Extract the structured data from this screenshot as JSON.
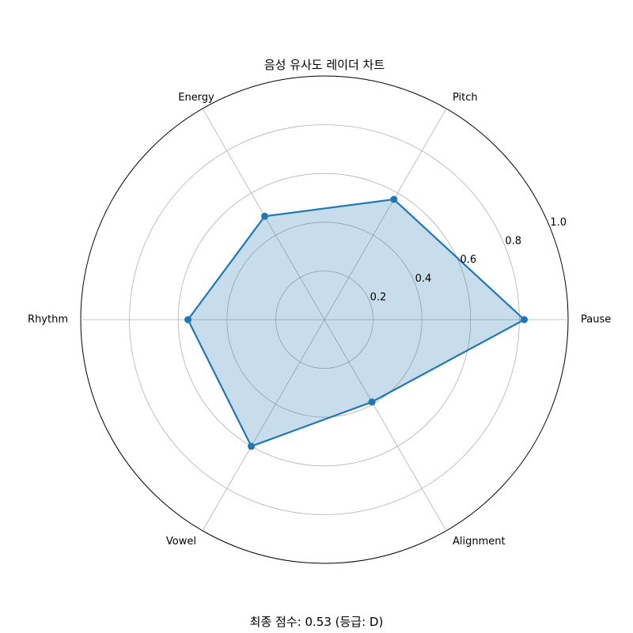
{
  "chart_data": {
    "type": "radar",
    "title": "음성 유사도 레이더 차트",
    "axes": [
      "Pause",
      "Pitch",
      "Energy",
      "Rhythm",
      "Vowel",
      "Alignment"
    ],
    "series": [
      {
        "values": [
          0.82,
          0.57,
          0.49,
          0.56,
          0.6,
          0.39
        ]
      }
    ],
    "rlim": [
      0,
      1.0
    ],
    "rticks": [
      0.2,
      0.4,
      0.6,
      0.8,
      1.0
    ],
    "rtick_labels": [
      "0.2",
      "0.4",
      "0.6",
      "0.8",
      "1.0"
    ],
    "grid": true,
    "colors": {
      "line": "#1f77b4",
      "fill": "#1f77b4",
      "grid": "#b0b0b0",
      "frame": "#000000"
    }
  },
  "footer": {
    "score_text": "최종 점수: 0.53 (등급: D)"
  }
}
